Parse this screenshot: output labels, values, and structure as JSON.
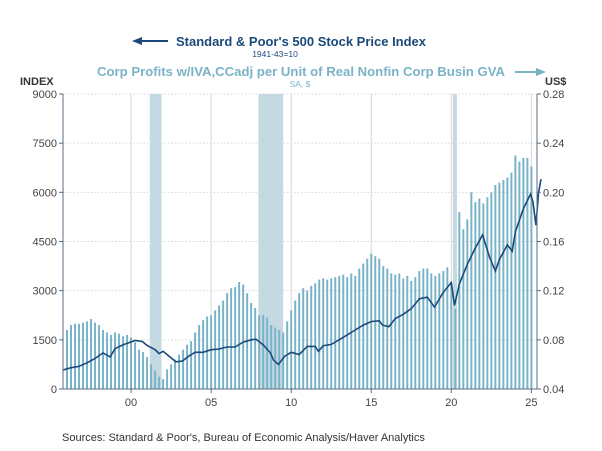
{
  "chart_data": {
    "type": "bar+line",
    "title_left": "Standard & Poor's 500 Stock Price Index",
    "subtitle_left": "1941-43=10",
    "title_right": "Corp Profits w/IVA,CCadj per Unit of Real Nonfin Corp Busin GVA",
    "subtitle_right": "SA, $",
    "left_unit": "INDEX",
    "right_unit": "US$",
    "left_ticks": [
      "0",
      "1500",
      "3000",
      "4500",
      "6000",
      "7500",
      "9000"
    ],
    "left_ylim": [
      0,
      9000
    ],
    "right_ticks": [
      "0.04",
      "0.08",
      "0.12",
      "0.16",
      "0.20",
      "0.24",
      "0.28"
    ],
    "right_ylim": [
      0.04,
      0.28
    ],
    "x_ticks": [
      {
        "year": 2000,
        "label": "00"
      },
      {
        "year": 2005,
        "label": "05"
      },
      {
        "year": 2010,
        "label": "10"
      },
      {
        "year": 2015,
        "label": "15"
      },
      {
        "year": 2020,
        "label": "20"
      },
      {
        "year": 2025,
        "label": "25"
      }
    ],
    "xlim": [
      1995.75,
      2025.35
    ],
    "recessions": [
      [
        2001.17,
        2001.9
      ],
      [
        2007.95,
        2009.5
      ],
      [
        2020.1,
        2020.35
      ]
    ],
    "colors": {
      "line": "#1b4a7a",
      "bars": "#7ab3c8",
      "recession": "#c5d9e2",
      "grid": "#d6d6d6",
      "axis": "#5a6e80"
    },
    "bars": {
      "name": "Corp Profits per Unit of Real Nonfin Corp Busin GVA",
      "start": 1996.0,
      "freq": "quarterly",
      "values": [
        0.088,
        0.092,
        0.093,
        0.093,
        0.094,
        0.095,
        0.097,
        0.094,
        0.092,
        0.088,
        0.086,
        0.084,
        0.086,
        0.085,
        0.083,
        0.084,
        0.082,
        0.078,
        0.072,
        0.07,
        0.066,
        0.06,
        0.055,
        0.05,
        0.048,
        0.056,
        0.06,
        0.064,
        0.068,
        0.072,
        0.076,
        0.079,
        0.086,
        0.092,
        0.096,
        0.099,
        0.1,
        0.104,
        0.108,
        0.112,
        0.118,
        0.122,
        0.123,
        0.127,
        0.125,
        0.118,
        0.11,
        0.106,
        0.1,
        0.1,
        0.098,
        0.092,
        0.09,
        0.088,
        0.086,
        0.095,
        0.104,
        0.112,
        0.118,
        0.122,
        0.12,
        0.124,
        0.126,
        0.129,
        0.13,
        0.129,
        0.13,
        0.131,
        0.132,
        0.133,
        0.131,
        0.134,
        0.132,
        0.138,
        0.142,
        0.146,
        0.15,
        0.148,
        0.146,
        0.14,
        0.138,
        0.134,
        0.133,
        0.134,
        0.13,
        0.132,
        0.128,
        0.131,
        0.136,
        0.138,
        0.138,
        0.134,
        0.132,
        0.134,
        0.136,
        0.139,
        0.126,
        0.105,
        0.184,
        0.17,
        0.178,
        0.2,
        0.192,
        0.195,
        0.191,
        0.196,
        0.2,
        0.206,
        0.208,
        0.21,
        0.212,
        0.216,
        0.23,
        0.225,
        0.228,
        0.228,
        0.221
      ]
    },
    "line": {
      "name": "Standard & Poor's 500 Stock Price Index",
      "points": [
        [
          1995.75,
          580
        ],
        [
          1996.25,
          650
        ],
        [
          1996.75,
          690
        ],
        [
          1997.25,
          800
        ],
        [
          1997.75,
          930
        ],
        [
          1998.25,
          1100
        ],
        [
          1998.7,
          980
        ],
        [
          1999.0,
          1230
        ],
        [
          1999.5,
          1350
        ],
        [
          1999.9,
          1420
        ],
        [
          2000.25,
          1480
        ],
        [
          2000.7,
          1450
        ],
        [
          2001.0,
          1330
        ],
        [
          2001.5,
          1200
        ],
        [
          2001.75,
          1080
        ],
        [
          2002.0,
          1150
        ],
        [
          2002.5,
          950
        ],
        [
          2002.8,
          830
        ],
        [
          2003.2,
          850
        ],
        [
          2003.6,
          1000
        ],
        [
          2004.0,
          1120
        ],
        [
          2004.5,
          1120
        ],
        [
          2005.0,
          1200
        ],
        [
          2005.5,
          1220
        ],
        [
          2006.0,
          1280
        ],
        [
          2006.5,
          1280
        ],
        [
          2007.0,
          1430
        ],
        [
          2007.5,
          1500
        ],
        [
          2007.8,
          1520
        ],
        [
          2008.25,
          1350
        ],
        [
          2008.7,
          1100
        ],
        [
          2008.9,
          880
        ],
        [
          2009.2,
          750
        ],
        [
          2009.6,
          1000
        ],
        [
          2010.0,
          1120
        ],
        [
          2010.5,
          1050
        ],
        [
          2011.0,
          1300
        ],
        [
          2011.5,
          1300
        ],
        [
          2011.7,
          1150
        ],
        [
          2012.0,
          1320
        ],
        [
          2012.5,
          1360
        ],
        [
          2013.0,
          1500
        ],
        [
          2013.5,
          1650
        ],
        [
          2014.0,
          1800
        ],
        [
          2014.5,
          1950
        ],
        [
          2015.0,
          2060
        ],
        [
          2015.5,
          2080
        ],
        [
          2015.7,
          1950
        ],
        [
          2016.1,
          1900
        ],
        [
          2016.5,
          2150
        ],
        [
          2017.0,
          2280
        ],
        [
          2017.5,
          2450
        ],
        [
          2018.0,
          2750
        ],
        [
          2018.5,
          2800
        ],
        [
          2018.95,
          2500
        ],
        [
          2019.5,
          2950
        ],
        [
          2020.0,
          3250
        ],
        [
          2020.2,
          2550
        ],
        [
          2020.5,
          3200
        ],
        [
          2021.0,
          3800
        ],
        [
          2021.5,
          4300
        ],
        [
          2021.95,
          4700
        ],
        [
          2022.4,
          4000
        ],
        [
          2022.75,
          3600
        ],
        [
          2023.0,
          3950
        ],
        [
          2023.5,
          4400
        ],
        [
          2023.8,
          4200
        ],
        [
          2024.0,
          4800
        ],
        [
          2024.5,
          5500
        ],
        [
          2024.95,
          5950
        ],
        [
          2025.1,
          5700
        ],
        [
          2025.28,
          5000
        ],
        [
          2025.45,
          6000
        ],
        [
          2025.6,
          6400
        ]
      ]
    },
    "source": "Sources:  Standard & Poor's, Bureau of Economic Analysis/Haver Analytics"
  }
}
